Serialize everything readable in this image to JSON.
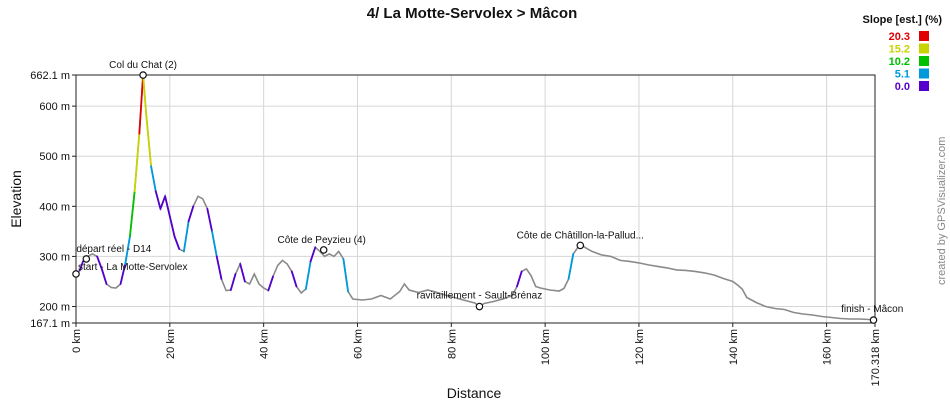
{
  "chart_data": {
    "type": "line",
    "title": "4/ La Motte-Servolex > Mâcon",
    "xlabel": "Distance",
    "ylabel": "Elevation",
    "xlim": [
      0,
      170.318
    ],
    "ylim": [
      167.1,
      662.1
    ],
    "x_ticks": [
      {
        "value": 0,
        "label": "0 km"
      },
      {
        "value": 20,
        "label": "20 km"
      },
      {
        "value": 40,
        "label": "40 km"
      },
      {
        "value": 60,
        "label": "60 km"
      },
      {
        "value": 80,
        "label": "80 km"
      },
      {
        "value": 100,
        "label": "100 km"
      },
      {
        "value": 120,
        "label": "120 km"
      },
      {
        "value": 140,
        "label": "140 km"
      },
      {
        "value": 160,
        "label": "160 km"
      },
      {
        "value": 170.318,
        "label": "170.318 km"
      }
    ],
    "y_ticks": [
      {
        "value": 167.1,
        "label": "167.1 m"
      },
      {
        "value": 200,
        "label": "200 m"
      },
      {
        "value": 300,
        "label": "300 m"
      },
      {
        "value": 400,
        "label": "400 m"
      },
      {
        "value": 500,
        "label": "500 m"
      },
      {
        "value": 600,
        "label": "600 m"
      },
      {
        "value": 662.1,
        "label": "662.1 m"
      }
    ],
    "grid": true,
    "legend": {
      "title": "Slope [est.] (%)",
      "placement": "top-right",
      "entries": [
        {
          "label": "20.3",
          "color": "#e00000"
        },
        {
          "label": "15.2",
          "color": "#c8d400"
        },
        {
          "label": "10.2",
          "color": "#00c000"
        },
        {
          "label": "5.1",
          "color": "#0099dd"
        },
        {
          "label": "0.0",
          "color": "#5500cc"
        }
      ]
    },
    "series": [
      {
        "values": [
          [
            0,
            265
          ],
          [
            0.8,
            272
          ],
          [
            1.5,
            290
          ],
          [
            2.5,
            300
          ],
          [
            3.5,
            305
          ],
          [
            4.5,
            300
          ],
          [
            5.5,
            275
          ],
          [
            6.5,
            245
          ],
          [
            7.5,
            238
          ],
          [
            8.5,
            237
          ],
          [
            9.5,
            245
          ],
          [
            10.5,
            285
          ],
          [
            11.5,
            340
          ],
          [
            12.5,
            430
          ],
          [
            13.5,
            545
          ],
          [
            14.3,
            662
          ],
          [
            15,
            580
          ],
          [
            16,
            480
          ],
          [
            17,
            430
          ],
          [
            18,
            395
          ],
          [
            19,
            420
          ],
          [
            20,
            380
          ],
          [
            21,
            340
          ],
          [
            22,
            315
          ],
          [
            23,
            310
          ],
          [
            24,
            370
          ],
          [
            25,
            400
          ],
          [
            26,
            420
          ],
          [
            27,
            415
          ],
          [
            28,
            395
          ],
          [
            29,
            350
          ],
          [
            30,
            300
          ],
          [
            31,
            255
          ],
          [
            32,
            232
          ],
          [
            33,
            233
          ],
          [
            34,
            265
          ],
          [
            35,
            285
          ],
          [
            36,
            250
          ],
          [
            37,
            245
          ],
          [
            38,
            265
          ],
          [
            39,
            245
          ],
          [
            40,
            237
          ],
          [
            41,
            232
          ],
          [
            42,
            260
          ],
          [
            43,
            282
          ],
          [
            44,
            292
          ],
          [
            45,
            285
          ],
          [
            46,
            270
          ],
          [
            47,
            240
          ],
          [
            48,
            227
          ],
          [
            49,
            235
          ],
          [
            50,
            290
          ],
          [
            51,
            318
          ],
          [
            52,
            310
          ],
          [
            53,
            300
          ],
          [
            54,
            305
          ],
          [
            55,
            300
          ],
          [
            56,
            310
          ],
          [
            57,
            295
          ],
          [
            58,
            230
          ],
          [
            59,
            215
          ],
          [
            61,
            213
          ],
          [
            63,
            215
          ],
          [
            65,
            222
          ],
          [
            67,
            215
          ],
          [
            69,
            230
          ],
          [
            70,
            245
          ],
          [
            71,
            233
          ],
          [
            73,
            228
          ],
          [
            75,
            233
          ],
          [
            77,
            228
          ],
          [
            79,
            222
          ],
          [
            81,
            217
          ],
          [
            83,
            212
          ],
          [
            85,
            207
          ],
          [
            86,
            200
          ],
          [
            87,
            206
          ],
          [
            89,
            210
          ],
          [
            91,
            215
          ],
          [
            93,
            222
          ],
          [
            94,
            240
          ],
          [
            95,
            270
          ],
          [
            96,
            275
          ],
          [
            97,
            262
          ],
          [
            98,
            240
          ],
          [
            99,
            237
          ],
          [
            101,
            233
          ],
          [
            103,
            231
          ],
          [
            104,
            236
          ],
          [
            105,
            255
          ],
          [
            106,
            305
          ],
          [
            107.5,
            325
          ],
          [
            108.5,
            318
          ],
          [
            110,
            310
          ],
          [
            112,
            303
          ],
          [
            114,
            300
          ],
          [
            116,
            292
          ],
          [
            118,
            290
          ],
          [
            120,
            287
          ],
          [
            122,
            283
          ],
          [
            124,
            280
          ],
          [
            126,
            277
          ],
          [
            128,
            273
          ],
          [
            130,
            272
          ],
          [
            132,
            270
          ],
          [
            134,
            267
          ],
          [
            136,
            263
          ],
          [
            138,
            256
          ],
          [
            140,
            250
          ],
          [
            141,
            243
          ],
          [
            142,
            235
          ],
          [
            143,
            218
          ],
          [
            145,
            208
          ],
          [
            147,
            200
          ],
          [
            149,
            196
          ],
          [
            151,
            194
          ],
          [
            153,
            188
          ],
          [
            155,
            185
          ],
          [
            157,
            183
          ],
          [
            159,
            180
          ],
          [
            161,
            178
          ],
          [
            163,
            176
          ],
          [
            165,
            175
          ],
          [
            167,
            175
          ],
          [
            169,
            174
          ],
          [
            170.318,
            173
          ]
        ]
      }
    ],
    "waypoints": [
      {
        "label": "start - La Motte-Servolex",
        "x": 0,
        "y": 265
      },
      {
        "label": "départ réel - D14",
        "x": 2.2,
        "y": 295
      },
      {
        "label": "Col du Chat (2)",
        "x": 14.3,
        "y": 662
      },
      {
        "label": "Côte de Peyzieu (4)",
        "x": 52.8,
        "y": 313
      },
      {
        "label": "ravitaillement - Sault-Brénaz",
        "x": 86,
        "y": 200
      },
      {
        "label": "Côte de Châtillon-la-Pallud...",
        "x": 107.5,
        "y": 322
      },
      {
        "label": "finish - Mâcon",
        "x": 170,
        "y": 173
      }
    ]
  },
  "credit": "created by GPSVisualizer.com"
}
